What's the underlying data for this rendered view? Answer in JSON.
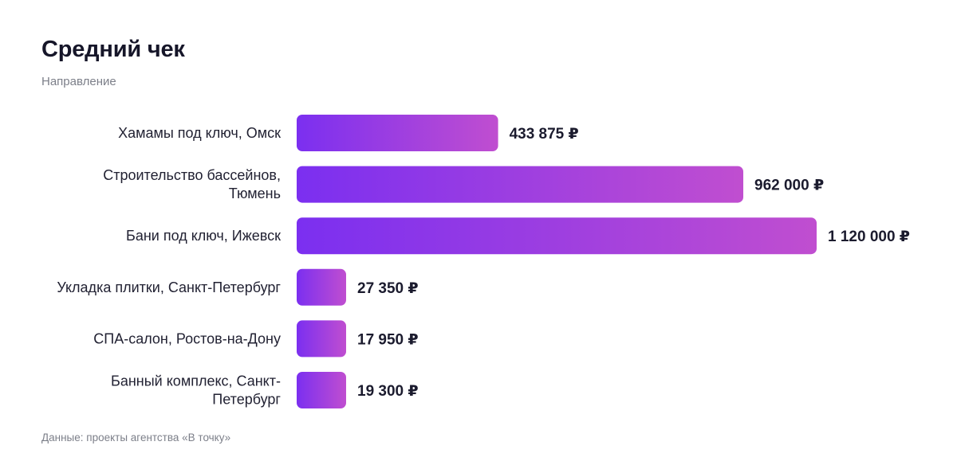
{
  "chart_data": {
    "type": "bar",
    "orientation": "horizontal",
    "title": "Средний чек",
    "subtitle": "Направление",
    "categories": [
      "Хамамы под ключ, Омск",
      "Строительство бассейнов, Тюмень",
      "Бани под ключ, Ижевск",
      "Укладка плитки, Санкт-Петербург",
      "СПА-салон, Ростов-на-Дону",
      "Банный комплекс, Санкт-Петербург"
    ],
    "category_lines": [
      [
        "Хамамы под ключ, Омск"
      ],
      [
        "Строительство бассейнов,",
        "Тюмень"
      ],
      [
        "Бани под ключ, Ижевск"
      ],
      [
        "Укладка плитки, Санкт-Петербург"
      ],
      [
        "СПА-салон, Ростов-на-Дону"
      ],
      [
        "Банный комплекс, Санкт-",
        "Петербург"
      ]
    ],
    "values": [
      433875,
      962000,
      1120000,
      27350,
      17950,
      19300
    ],
    "value_labels": [
      "433 875 ₽",
      "962 000 ₽",
      "1 120 000 ₽",
      "27 350 ₽",
      "17 950 ₽",
      "19 300 ₽"
    ],
    "xlim": [
      0,
      1120000
    ],
    "grid": false,
    "colors": {
      "bar_start": "#7b2ff0",
      "bar_end": "#c04ed0"
    }
  },
  "footnote": "Данные: проекты агентства «В точку»"
}
